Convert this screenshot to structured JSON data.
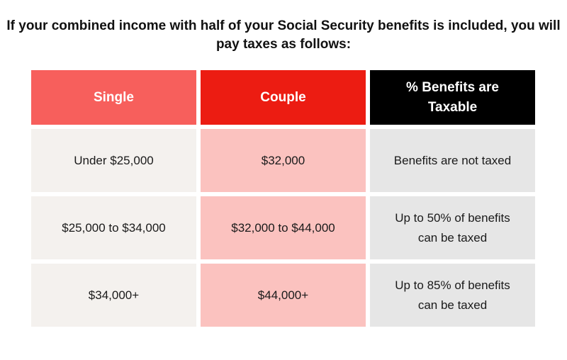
{
  "title": "If your combined income with half of your Social Security benefits is included, you will pay taxes as follows:",
  "headers": {
    "single": "Single",
    "couple": "Couple",
    "pct": "% Benefits are Taxable"
  },
  "rows": [
    {
      "single": "Under $25,000",
      "couple": "$32,000",
      "pct": "Benefits are not taxed"
    },
    {
      "single": "$25,000 to $34,000",
      "couple": "$32,000 to $44,000",
      "pct": "Up to 50% of benefits can be taxed"
    },
    {
      "single": "$34,000+",
      "couple": "$44,000+",
      "pct": "Up to 85% of benefits can be taxed"
    }
  ],
  "colors": {
    "single_header": "#f75f5c",
    "couple_header": "#ec1c12",
    "pct_header": "#000000",
    "single_cell": "#f4f1ee",
    "couple_cell": "#fbc2bf",
    "pct_cell": "#e6e6e6"
  }
}
